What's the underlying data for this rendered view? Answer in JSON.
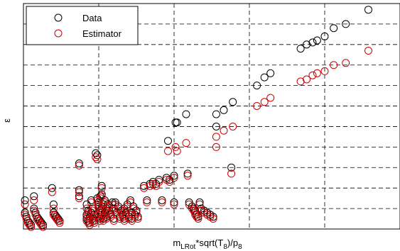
{
  "chart_data": {
    "type": "scatter",
    "title": "",
    "xlabel": "m_LRot*sqrt(T_8)/p_8",
    "ylabel": "ε",
    "grid": true,
    "legend_position": "top-left",
    "colors": {
      "data": "#000000",
      "estimator": "#cc0000",
      "grid": "#000000"
    },
    "series": [
      {
        "name": "Data",
        "points": [
          [
            0.01,
            0.14
          ],
          [
            0.01,
            0.08
          ],
          [
            0.02,
            0.06
          ],
          [
            0.03,
            0.04
          ],
          [
            0.04,
            0.03
          ],
          [
            0.05,
            0.02
          ],
          [
            0.07,
            0.16
          ],
          [
            0.07,
            0.1
          ],
          [
            0.08,
            0.08
          ],
          [
            0.09,
            0.06
          ],
          [
            0.1,
            0.05
          ],
          [
            0.11,
            0.04
          ],
          [
            0.12,
            0.03
          ],
          [
            0.13,
            0.02
          ],
          [
            0.19,
            0.2
          ],
          [
            0.2,
            0.12
          ],
          [
            0.2,
            0.08
          ],
          [
            0.21,
            0.07
          ],
          [
            0.22,
            0.06
          ],
          [
            0.23,
            0.05
          ],
          [
            0.24,
            0.04
          ],
          [
            0.37,
            0.32
          ],
          [
            0.37,
            0.19
          ],
          [
            0.37,
            0.16
          ],
          [
            0.42,
            0.12
          ],
          [
            0.42,
            0.07
          ],
          [
            0.42,
            0.05
          ],
          [
            0.43,
            0.09
          ],
          [
            0.43,
            0.04
          ],
          [
            0.44,
            0.06
          ],
          [
            0.44,
            0.03
          ],
          [
            0.45,
            0.14
          ],
          [
            0.45,
            0.08
          ],
          [
            0.46,
            0.1
          ],
          [
            0.46,
            0.05
          ],
          [
            0.47,
            0.07
          ],
          [
            0.47,
            0.04
          ],
          [
            0.48,
            0.37
          ],
          [
            0.49,
            0.36
          ],
          [
            0.49,
            0.15
          ],
          [
            0.5,
            0.13
          ],
          [
            0.5,
            0.11
          ],
          [
            0.5,
            0.06
          ],
          [
            0.51,
            0.16
          ],
          [
            0.51,
            0.09
          ],
          [
            0.51,
            0.05
          ],
          [
            0.52,
            0.21
          ],
          [
            0.52,
            0.17
          ],
          [
            0.52,
            0.1
          ],
          [
            0.52,
            0.07
          ],
          [
            0.53,
            0.12
          ],
          [
            0.53,
            0.05
          ],
          [
            0.54,
            0.14
          ],
          [
            0.54,
            0.08
          ],
          [
            0.55,
            0.1
          ],
          [
            0.55,
            0.06
          ],
          [
            0.56,
            0.12
          ],
          [
            0.57,
            0.09
          ],
          [
            0.58,
            0.07
          ],
          [
            0.59,
            0.13
          ],
          [
            0.6,
            0.1
          ],
          [
            0.6,
            0.05
          ],
          [
            0.61,
            0.13
          ],
          [
            0.62,
            0.08
          ],
          [
            0.63,
            0.11
          ],
          [
            0.64,
            0.06
          ],
          [
            0.65,
            0.09
          ],
          [
            0.66,
            0.07
          ],
          [
            0.67,
            0.1
          ],
          [
            0.67,
            0.05
          ],
          [
            0.68,
            0.08
          ],
          [
            0.69,
            0.12
          ],
          [
            0.7,
            0.06
          ],
          [
            0.71,
            0.14
          ],
          [
            0.72,
            0.08
          ],
          [
            0.72,
            0.05
          ],
          [
            0.73,
            0.11
          ],
          [
            0.74,
            0.07
          ],
          [
            0.75,
            0.09
          ],
          [
            0.76,
            0.06
          ],
          [
            0.8,
            0.21
          ],
          [
            0.82,
            0.14
          ],
          [
            0.84,
            0.22
          ],
          [
            0.86,
            0.23
          ],
          [
            0.88,
            0.22
          ],
          [
            0.9,
            0.24
          ],
          [
            0.92,
            0.14
          ],
          [
            0.95,
            0.25
          ],
          [
            0.96,
            0.43
          ],
          [
            0.97,
            0.24
          ],
          [
            1.0,
            0.26
          ],
          [
            1.01,
            0.52
          ],
          [
            1.02,
            0.52
          ],
          [
            1.0,
            0.13
          ],
          [
            1.08,
            0.56
          ],
          [
            1.09,
            0.27
          ],
          [
            1.1,
            0.13
          ],
          [
            1.12,
            0.11
          ],
          [
            1.13,
            0.1
          ],
          [
            1.14,
            0.09
          ],
          [
            1.14,
            0.08
          ],
          [
            1.15,
            0.07
          ],
          [
            1.16,
            0.06
          ],
          [
            1.17,
            0.13
          ],
          [
            1.18,
            0.1
          ],
          [
            1.2,
            0.09
          ],
          [
            1.22,
            0.08
          ],
          [
            1.24,
            0.07
          ],
          [
            1.26,
            0.06
          ],
          [
            1.28,
            0.5
          ],
          [
            1.28,
            0.56
          ],
          [
            1.33,
            0.58
          ],
          [
            1.38,
            0.3
          ],
          [
            1.39,
            0.62
          ],
          [
            1.55,
            0.7
          ],
          [
            1.6,
            0.74
          ],
          [
            1.64,
            0.76
          ],
          [
            1.84,
            0.88
          ],
          [
            1.88,
            0.9
          ],
          [
            1.92,
            0.91
          ],
          [
            1.95,
            0.92
          ],
          [
            2.0,
            0.94
          ],
          [
            2.06,
            0.98
          ],
          [
            2.14,
            1.0
          ],
          [
            2.29,
            1.07
          ]
        ]
      },
      {
        "name": "Estimator",
        "points": [
          [
            0.01,
            0.12
          ],
          [
            0.01,
            0.07
          ],
          [
            0.02,
            0.05
          ],
          [
            0.03,
            0.03
          ],
          [
            0.04,
            0.02
          ],
          [
            0.05,
            0.01
          ],
          [
            0.07,
            0.14
          ],
          [
            0.07,
            0.09
          ],
          [
            0.08,
            0.07
          ],
          [
            0.09,
            0.05
          ],
          [
            0.1,
            0.04
          ],
          [
            0.11,
            0.03
          ],
          [
            0.12,
            0.02
          ],
          [
            0.13,
            0.01
          ],
          [
            0.19,
            0.18
          ],
          [
            0.2,
            0.1
          ],
          [
            0.2,
            0.07
          ],
          [
            0.21,
            0.06
          ],
          [
            0.22,
            0.05
          ],
          [
            0.23,
            0.04
          ],
          [
            0.24,
            0.03
          ],
          [
            0.37,
            0.31
          ],
          [
            0.37,
            0.18
          ],
          [
            0.37,
            0.15
          ],
          [
            0.42,
            0.1
          ],
          [
            0.42,
            0.06
          ],
          [
            0.42,
            0.04
          ],
          [
            0.43,
            0.08
          ],
          [
            0.43,
            0.03
          ],
          [
            0.44,
            0.05
          ],
          [
            0.44,
            0.02
          ],
          [
            0.45,
            0.13
          ],
          [
            0.45,
            0.07
          ],
          [
            0.46,
            0.09
          ],
          [
            0.46,
            0.04
          ],
          [
            0.47,
            0.06
          ],
          [
            0.47,
            0.03
          ],
          [
            0.48,
            0.35
          ],
          [
            0.49,
            0.34
          ],
          [
            0.49,
            0.14
          ],
          [
            0.5,
            0.12
          ],
          [
            0.5,
            0.1
          ],
          [
            0.5,
            0.05
          ],
          [
            0.51,
            0.15
          ],
          [
            0.51,
            0.08
          ],
          [
            0.51,
            0.04
          ],
          [
            0.52,
            0.2
          ],
          [
            0.52,
            0.16
          ],
          [
            0.52,
            0.09
          ],
          [
            0.52,
            0.06
          ],
          [
            0.53,
            0.11
          ],
          [
            0.53,
            0.04
          ],
          [
            0.54,
            0.13
          ],
          [
            0.54,
            0.07
          ],
          [
            0.55,
            0.09
          ],
          [
            0.55,
            0.05
          ],
          [
            0.56,
            0.11
          ],
          [
            0.57,
            0.08
          ],
          [
            0.58,
            0.06
          ],
          [
            0.59,
            0.12
          ],
          [
            0.6,
            0.09
          ],
          [
            0.6,
            0.04
          ],
          [
            0.61,
            0.12
          ],
          [
            0.62,
            0.07
          ],
          [
            0.63,
            0.1
          ],
          [
            0.64,
            0.05
          ],
          [
            0.65,
            0.08
          ],
          [
            0.66,
            0.06
          ],
          [
            0.67,
            0.09
          ],
          [
            0.67,
            0.04
          ],
          [
            0.68,
            0.07
          ],
          [
            0.69,
            0.11
          ],
          [
            0.7,
            0.05
          ],
          [
            0.71,
            0.13
          ],
          [
            0.72,
            0.07
          ],
          [
            0.72,
            0.04
          ],
          [
            0.73,
            0.1
          ],
          [
            0.74,
            0.06
          ],
          [
            0.75,
            0.08
          ],
          [
            0.76,
            0.05
          ],
          [
            0.8,
            0.2
          ],
          [
            0.82,
            0.13
          ],
          [
            0.84,
            0.21
          ],
          [
            0.86,
            0.22
          ],
          [
            0.88,
            0.21
          ],
          [
            0.9,
            0.23
          ],
          [
            0.92,
            0.13
          ],
          [
            0.95,
            0.24
          ],
          [
            0.96,
            0.38
          ],
          [
            0.97,
            0.23
          ],
          [
            1.0,
            0.25
          ],
          [
            1.01,
            0.4
          ],
          [
            1.02,
            0.38
          ],
          [
            1.0,
            0.12
          ],
          [
            1.08,
            0.42
          ],
          [
            1.09,
            0.26
          ],
          [
            1.1,
            0.12
          ],
          [
            1.12,
            0.1
          ],
          [
            1.13,
            0.09
          ],
          [
            1.14,
            0.08
          ],
          [
            1.14,
            0.07
          ],
          [
            1.15,
            0.06
          ],
          [
            1.16,
            0.05
          ],
          [
            1.17,
            0.12
          ],
          [
            1.18,
            0.09
          ],
          [
            1.2,
            0.08
          ],
          [
            1.22,
            0.07
          ],
          [
            1.24,
            0.06
          ],
          [
            1.26,
            0.05
          ],
          [
            1.28,
            0.4
          ],
          [
            1.28,
            0.45
          ],
          [
            1.33,
            0.48
          ],
          [
            1.38,
            0.27
          ],
          [
            1.39,
            0.5
          ],
          [
            1.55,
            0.6
          ],
          [
            1.6,
            0.62
          ],
          [
            1.64,
            0.64
          ],
          [
            1.84,
            0.72
          ],
          [
            1.88,
            0.73
          ],
          [
            1.92,
            0.75
          ],
          [
            1.95,
            0.76
          ],
          [
            2.0,
            0.77
          ],
          [
            2.06,
            0.8
          ],
          [
            2.14,
            0.81
          ],
          [
            2.29,
            0.87
          ]
        ]
      }
    ],
    "xlim": [
      0,
      2.5
    ],
    "ylim": [
      0,
      1.1
    ],
    "xticks": [
      0,
      0.5,
      1.0,
      1.5,
      2.0,
      2.5
    ],
    "yticks": [
      0,
      0.1,
      0.2,
      0.3,
      0.4,
      0.5,
      0.6,
      0.7,
      0.8,
      0.9,
      1.0,
      1.1
    ]
  }
}
